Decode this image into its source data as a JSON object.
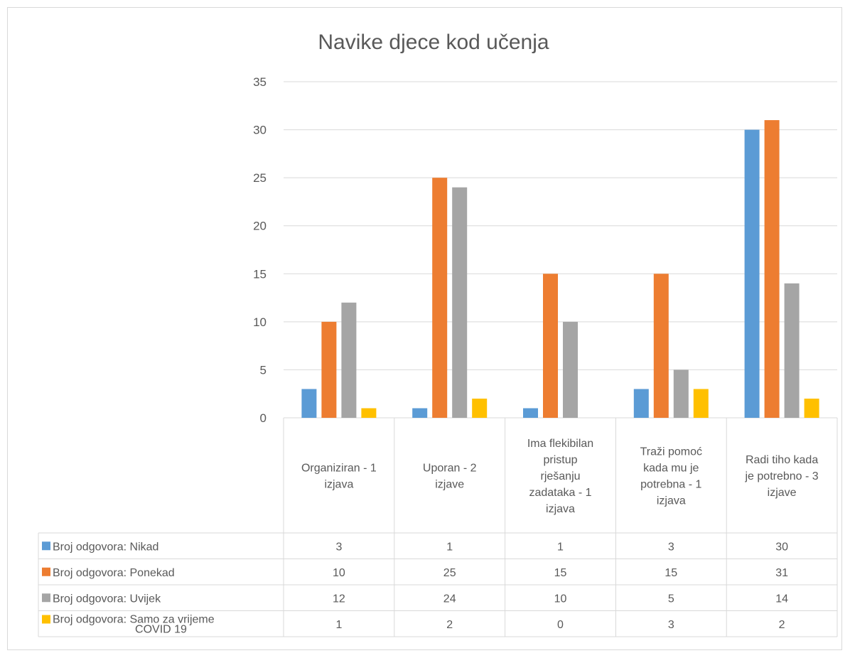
{
  "chart_data": {
    "type": "bar",
    "title": "Navike djece kod učenja",
    "categories": [
      "Organiziran - 1 izjava",
      "Uporan - 2 izjave",
      "Ima flekibilan pristup rješanju zadataka - 1 izjava",
      "Traži pomoć kada mu je potrebna - 1 izjava",
      "Radi tiho kada je potrebno - 3 izjave"
    ],
    "category_lines": [
      [
        "Organiziran - 1",
        "izjava"
      ],
      [
        "Uporan - 2",
        "izjave"
      ],
      [
        "Ima flekibilan",
        "pristup",
        "rješanju",
        "zadataka - 1",
        "izjava"
      ],
      [
        "Traži pomoć",
        "kada mu je",
        "potrebna - 1",
        "izjava"
      ],
      [
        "Radi tiho kada",
        "je potrebno - 3",
        "izjave"
      ]
    ],
    "series": [
      {
        "name": "Broj odgovora: Nikad",
        "name_lines": [
          "Broj odgovora: Nikad"
        ],
        "color": "#5b9bd5",
        "values": [
          3,
          1,
          1,
          3,
          30
        ]
      },
      {
        "name": "Broj odgovora: Ponekad",
        "name_lines": [
          "Broj odgovora: Ponekad"
        ],
        "color": "#ed7d31",
        "values": [
          10,
          25,
          15,
          15,
          31
        ]
      },
      {
        "name": "Broj odgovora: Uvijek",
        "name_lines": [
          "Broj odgovora: Uvijek"
        ],
        "color": "#a5a5a5",
        "values": [
          12,
          24,
          10,
          5,
          14
        ]
      },
      {
        "name": "Broj odgovora: Samo za vrijeme COVID 19",
        "name_lines": [
          "Broj odgovora: Samo za vrijeme",
          "COVID 19"
        ],
        "color": "#ffc000",
        "values": [
          1,
          2,
          0,
          3,
          2
        ]
      }
    ],
    "ylim": [
      0,
      35
    ],
    "yticks": [
      0,
      5,
      10,
      15,
      20,
      25,
      30,
      35
    ],
    "grid": true,
    "legend": "data table below chart"
  }
}
